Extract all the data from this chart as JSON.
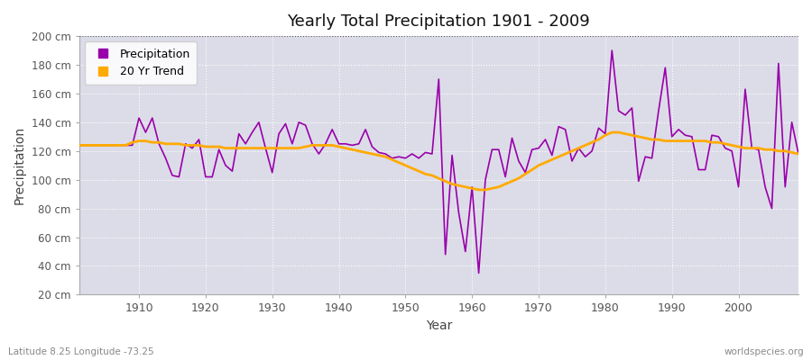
{
  "title": "Yearly Total Precipitation 1901 - 2009",
  "xlabel": "Year",
  "ylabel": "Precipitation",
  "subtitle_left": "Latitude 8.25 Longitude -73.25",
  "subtitle_right": "worldspecies.org",
  "ylim": [
    20,
    200
  ],
  "yticks": [
    20,
    40,
    60,
    80,
    100,
    120,
    140,
    160,
    180,
    200
  ],
  "ytick_labels": [
    "20 cm",
    "40 cm",
    "60 cm",
    "80 cm",
    "100 cm",
    "120 cm",
    "140 cm",
    "160 cm",
    "180 cm",
    "200 cm"
  ],
  "bg_color": "#dcdce8",
  "fig_color": "#ffffff",
  "precip_color": "#9900aa",
  "trend_color": "#ffaa00",
  "years": [
    1901,
    1902,
    1903,
    1904,
    1905,
    1906,
    1907,
    1908,
    1909,
    1910,
    1911,
    1912,
    1913,
    1914,
    1915,
    1916,
    1917,
    1918,
    1919,
    1920,
    1921,
    1922,
    1923,
    1924,
    1925,
    1926,
    1927,
    1928,
    1929,
    1930,
    1931,
    1932,
    1933,
    1934,
    1935,
    1936,
    1937,
    1938,
    1939,
    1940,
    1941,
    1942,
    1943,
    1944,
    1945,
    1946,
    1947,
    1948,
    1949,
    1950,
    1951,
    1952,
    1953,
    1954,
    1955,
    1956,
    1957,
    1958,
    1959,
    1960,
    1961,
    1962,
    1963,
    1964,
    1965,
    1966,
    1967,
    1968,
    1969,
    1970,
    1971,
    1972,
    1973,
    1974,
    1975,
    1976,
    1977,
    1978,
    1979,
    1980,
    1981,
    1982,
    1983,
    1984,
    1985,
    1986,
    1987,
    1988,
    1989,
    1990,
    1991,
    1992,
    1993,
    1994,
    1995,
    1996,
    1997,
    1998,
    1999,
    2000,
    2001,
    2002,
    2003,
    2004,
    2005,
    2006,
    2007,
    2008,
    2009
  ],
  "precip": [
    124,
    124,
    124,
    124,
    124,
    124,
    124,
    124,
    124,
    143,
    133,
    143,
    125,
    115,
    103,
    102,
    125,
    122,
    128,
    102,
    102,
    121,
    110,
    106,
    132,
    125,
    133,
    140,
    122,
    105,
    132,
    139,
    125,
    140,
    138,
    125,
    118,
    125,
    135,
    125,
    125,
    124,
    125,
    135,
    123,
    119,
    118,
    115,
    116,
    115,
    118,
    115,
    119,
    118,
    170,
    48,
    117,
    77,
    50,
    95,
    35,
    100,
    121,
    121,
    102,
    129,
    113,
    105,
    121,
    122,
    128,
    117,
    137,
    135,
    113,
    122,
    116,
    120,
    136,
    132,
    190,
    148,
    145,
    150,
    99,
    116,
    115,
    148,
    178,
    130,
    135,
    131,
    130,
    107,
    107,
    131,
    130,
    122,
    120,
    95,
    163,
    122,
    121,
    95,
    80,
    181,
    95,
    140,
    118
  ],
  "trend": [
    124,
    124,
    124,
    124,
    124,
    124,
    124,
    124,
    126,
    127,
    127,
    126,
    126,
    125,
    125,
    125,
    124,
    124,
    124,
    123,
    123,
    123,
    122,
    122,
    122,
    122,
    122,
    122,
    122,
    122,
    122,
    122,
    122,
    122,
    123,
    124,
    124,
    124,
    124,
    123,
    122,
    121,
    120,
    119,
    118,
    117,
    116,
    114,
    112,
    110,
    108,
    106,
    104,
    103,
    101,
    99,
    97,
    96,
    95,
    94,
    93,
    93,
    94,
    95,
    97,
    99,
    101,
    104,
    107,
    110,
    112,
    114,
    116,
    118,
    120,
    122,
    124,
    126,
    128,
    131,
    133,
    133,
    132,
    131,
    130,
    129,
    128,
    128,
    127,
    127,
    127,
    127,
    127,
    127,
    127,
    126,
    126,
    125,
    124,
    123,
    122,
    122,
    122,
    121,
    121,
    120,
    120,
    119,
    118
  ]
}
